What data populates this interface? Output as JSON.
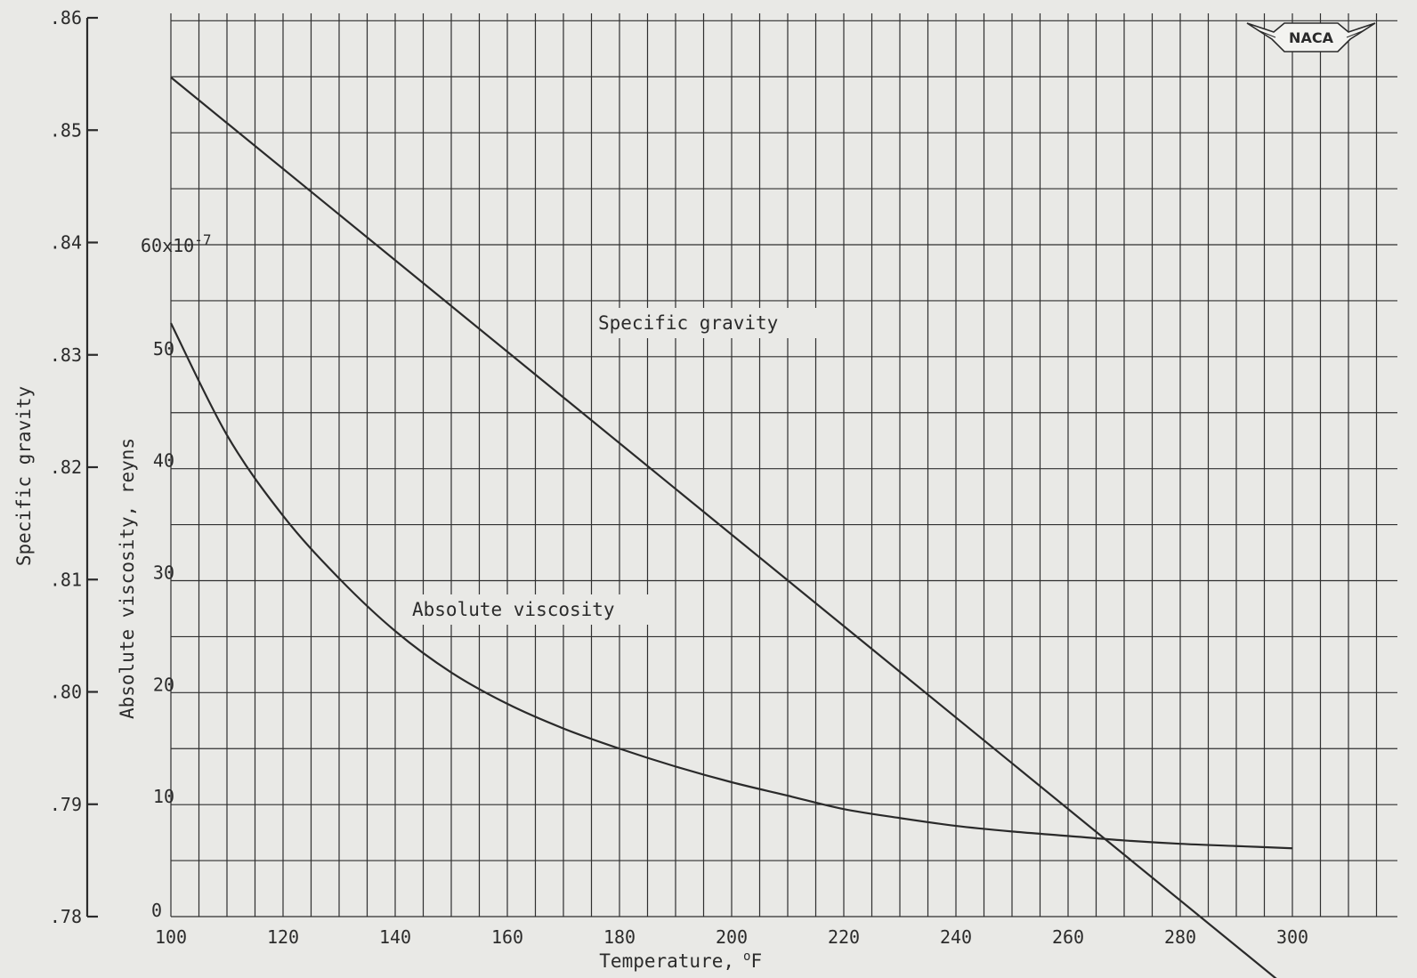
{
  "chart_data": {
    "type": "line",
    "title": "",
    "x": [
      100,
      110,
      120,
      130,
      140,
      150,
      160,
      170,
      180,
      190,
      200,
      210,
      220,
      230,
      240,
      250,
      260,
      270,
      280,
      290,
      300
    ],
    "xlabel": "Temperature,",
    "xlabel_unit": "°F",
    "xlim": [
      100,
      300
    ],
    "xticks": [
      100,
      120,
      140,
      160,
      180,
      200,
      220,
      240,
      260,
      280,
      300
    ],
    "ylabel_left": "Specific gravity",
    "ylim_left": [
      0.78,
      0.86
    ],
    "yticks_left": [
      ".78",
      ".79",
      ".80",
      ".81",
      ".82",
      ".83",
      ".84",
      ".85",
      ".86"
    ],
    "ylabel_right": "Absolute viscosity, reyns",
    "ylim_right": [
      0,
      60
    ],
    "yticks_right": [
      "0",
      "10",
      "20",
      "30",
      "40",
      "50"
    ],
    "ytick_top_prefix": "60x10",
    "ytick_top_exp": "-7",
    "grid": true,
    "series": [
      {
        "name": "Specific gravity",
        "axis": "left",
        "values": [
          0.8547,
          0.8507,
          0.8466,
          0.8425,
          0.8384,
          0.8343,
          0.8302,
          0.8262,
          0.8221,
          0.818,
          0.814,
          0.8099,
          0.8058,
          0.8018,
          0.7977,
          0.7936,
          0.7895,
          0.7855,
          0.7814,
          0.7773,
          0.7733
        ]
      },
      {
        "name": "Absolute viscosity",
        "axis": "right",
        "values": [
          53.0,
          43.0,
          35.8,
          30.2,
          25.5,
          21.8,
          19.0,
          16.8,
          15.0,
          13.4,
          12.0,
          10.8,
          9.6,
          8.8,
          8.1,
          7.6,
          7.2,
          6.8,
          6.5,
          6.3,
          6.1
        ]
      }
    ]
  },
  "logo": {
    "text": "NACA",
    "color": "#2a2a2a"
  }
}
